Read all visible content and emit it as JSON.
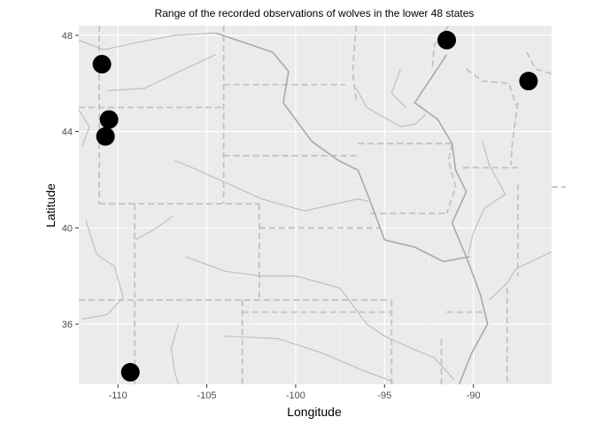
{
  "chart_data": {
    "type": "scatter",
    "title": "Range of the recorded observations of wolves in the lower 48 states",
    "xlabel": "Longitude",
    "ylabel": "Latitude",
    "xlim": [
      -112.2,
      -85.6
    ],
    "ylim": [
      33.5,
      48.4
    ],
    "x_ticks": [
      -110,
      -105,
      -100,
      -95,
      -90
    ],
    "x_tick_labels": [
      "-110",
      "-105",
      "-100",
      "-95",
      "-90"
    ],
    "y_ticks": [
      36,
      40,
      44,
      48
    ],
    "y_tick_labels": [
      "36",
      "40",
      "44",
      "48"
    ],
    "grid": true,
    "points": [
      {
        "x": -110.9,
        "y": 46.8
      },
      {
        "x": -110.5,
        "y": 44.5
      },
      {
        "x": -110.7,
        "y": 43.8
      },
      {
        "x": -109.3,
        "y": 34.0
      },
      {
        "x": -91.5,
        "y": 47.8
      },
      {
        "x": -86.9,
        "y": 46.1
      }
    ]
  },
  "colors": {
    "panel_background": "#ebebeb",
    "point": "#000000",
    "border": "#c2c2c2",
    "river": "#b9bcc3"
  }
}
